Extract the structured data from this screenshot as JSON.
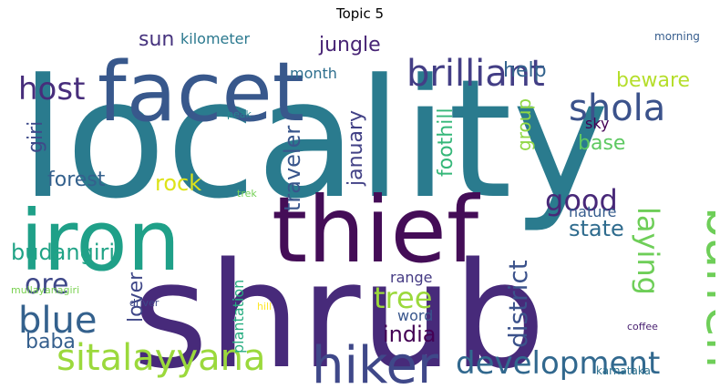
{
  "chart_data": {
    "type": "wordcloud",
    "title": "Topic 5",
    "colormap": "viridis",
    "words": [
      {
        "text": "locality",
        "color": "#2a7b8e"
      },
      {
        "text": "shrub",
        "color": "#472a7a"
      },
      {
        "text": "thief",
        "color": "#440d57"
      },
      {
        "text": "iron",
        "color": "#1fa088"
      },
      {
        "text": "facet",
        "color": "#38588c"
      },
      {
        "text": "hiker",
        "color": "#3f4889"
      },
      {
        "text": "barren",
        "color": "#6ece58"
      },
      {
        "text": "brilliant",
        "color": "#433e85"
      },
      {
        "text": "shola",
        "color": "#3b528b"
      },
      {
        "text": "sitalayyana",
        "color": "#9bd93c"
      },
      {
        "text": "development",
        "color": "#31688e"
      },
      {
        "text": "blue",
        "color": "#34618d"
      },
      {
        "text": "host",
        "color": "#472d7b"
      },
      {
        "text": "good",
        "color": "#482878"
      },
      {
        "text": "ore",
        "color": "#3f4889"
      },
      {
        "text": "tree",
        "color": "#9bd93c"
      },
      {
        "text": "laying",
        "color": "#6ece58"
      },
      {
        "text": "district",
        "color": "#3b528b"
      },
      {
        "text": "india",
        "color": "#440154"
      },
      {
        "text": "budangiri",
        "color": "#20a386"
      },
      {
        "text": "state",
        "color": "#2f6c8e"
      },
      {
        "text": "traveler",
        "color": "#39568c"
      },
      {
        "text": "rock",
        "color": "#dde318"
      },
      {
        "text": "jungle",
        "color": "#482475"
      },
      {
        "text": "january",
        "color": "#424186"
      },
      {
        "text": "foothill",
        "color": "#35b779"
      },
      {
        "text": "base",
        "color": "#5ec962"
      },
      {
        "text": "beware",
        "color": "#b5de2b"
      },
      {
        "text": "forest",
        "color": "#34618d"
      },
      {
        "text": "group",
        "color": "#8fd744"
      },
      {
        "text": "help",
        "color": "#33638d"
      },
      {
        "text": "giri",
        "color": "#3e4a89"
      },
      {
        "text": "sun",
        "color": "#46337e"
      },
      {
        "text": "lover",
        "color": "#3f4788"
      },
      {
        "text": "baba",
        "color": "#355f8d"
      },
      {
        "text": "kilometer",
        "color": "#2a788e"
      },
      {
        "text": "month",
        "color": "#2e6f8e"
      },
      {
        "text": "sky",
        "color": "#440154"
      },
      {
        "text": "nature",
        "color": "#365c8d"
      },
      {
        "text": "plantation",
        "color": "#27ad81"
      },
      {
        "text": "range",
        "color": "#443a83"
      },
      {
        "text": "word",
        "color": "#39568c"
      },
      {
        "text": "morning",
        "color": "#365d8d"
      },
      {
        "text": "peak",
        "color": "#25858e"
      },
      {
        "text": "trek",
        "color": "#73d055"
      },
      {
        "text": "mullayanagiri",
        "color": "#7ad151"
      },
      {
        "text": "driver",
        "color": "#3e4989"
      },
      {
        "text": "hill",
        "color": "#fde725"
      },
      {
        "text": "coffee",
        "color": "#481f70"
      },
      {
        "text": "karnataka",
        "color": "#2d718e"
      }
    ]
  }
}
